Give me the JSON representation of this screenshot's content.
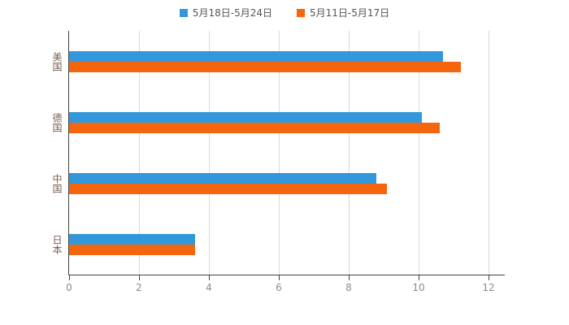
{
  "chart_data": {
    "type": "bar",
    "orientation": "horizontal",
    "title": "",
    "xlabel": "",
    "ylabel": "",
    "categories": [
      "美国",
      "德国",
      "中国",
      "日本"
    ],
    "series": [
      {
        "name": "5月18日-5月24日",
        "color": "#3398db",
        "values": [
          10.7,
          10.1,
          8.8,
          3.6
        ]
      },
      {
        "name": "5月11日-5月17日",
        "color": "#f5650d",
        "values": [
          11.2,
          10.6,
          9.1,
          3.6
        ]
      }
    ],
    "xlim": [
      0,
      12
    ],
    "xticks": [
      0,
      2,
      4,
      6,
      8,
      10,
      12
    ],
    "grid": true,
    "legend_position": "top"
  },
  "colors": {
    "background": "#ffffff",
    "axis": "#444444",
    "gridline": "#d9d9d9",
    "tick_label": "#8a8a8a",
    "category_label": "#7a5c50",
    "legend_text": "#555555",
    "series_blue": "#3398db",
    "series_orange": "#f5650d"
  }
}
